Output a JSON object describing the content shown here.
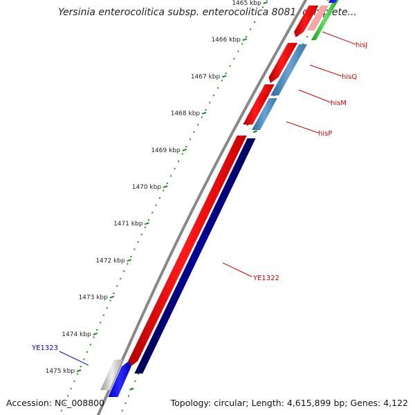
{
  "title": "Yersinia enterocolitica subsp. enterocolitica 8081, complete...",
  "footer": {
    "accession": "Accession: NC_008800",
    "summary": "Topology: circular; Length: 4,615,899 bp; Genes: 4,122"
  },
  "ruler": {
    "unit": "kbp",
    "ticks": [
      "1465 kbp",
      "1466 kbp",
      "1467 kbp",
      "1468 kbp",
      "1469 kbp",
      "1470 kbp",
      "1471 kbp",
      "1472 kbp",
      "1473 kbp",
      "1474 kbp",
      "1475 kbp"
    ]
  },
  "genes": [
    {
      "name": "hisJ",
      "strand": "reverse",
      "color": "#ff0000",
      "label_color": "#cc0000",
      "gene_type": "cds"
    },
    {
      "name": "hisQ",
      "strand": "reverse",
      "color": "#ff0000",
      "label_color": "#cc0000",
      "gene_type": "cds"
    },
    {
      "name": "hisM",
      "strand": "reverse",
      "color": "#ff0000",
      "label_color": "#cc0000",
      "gene_type": "cds"
    },
    {
      "name": "hisP",
      "strand": "reverse",
      "color": "#ff0000",
      "label_color": "#cc0000",
      "gene_type": "cds"
    },
    {
      "name": "YE1322",
      "strand": "reverse",
      "color": "#ff0000",
      "label_color": "#cc0000",
      "gene_type": "cds"
    },
    {
      "name": "YE1323",
      "strand": "forward",
      "color": "#0000ff",
      "label_color": "#0000cc",
      "gene_type": "cds"
    }
  ],
  "colors": {
    "backbone": "#888888",
    "reverse_cds": "#ff0000",
    "forward_cds": "#0000ff",
    "blast_hit": "#000080",
    "steelblue_feature": "#4682b4",
    "green_feature": "#33cc33",
    "gray_feature": "#bbbbbb",
    "ruler": "#1a8a1a"
  }
}
